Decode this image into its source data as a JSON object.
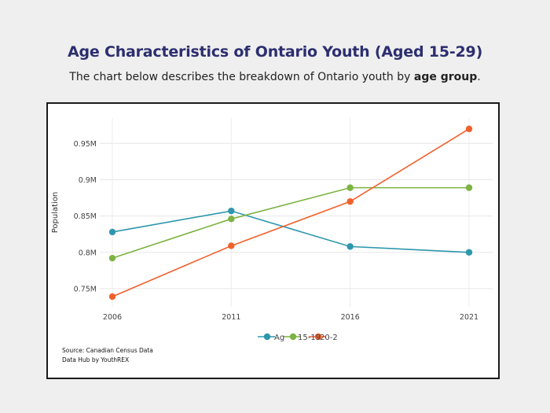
{
  "header": {
    "title": "Age Characteristics of Ontario Youth (Aged 15-29)",
    "subtitle_prefix": "The chart below describes the breakdown of Ontario youth by ",
    "subtitle_bold": "age group",
    "subtitle_suffix": "."
  },
  "footer": {
    "source": "Source: Canadian Census Data",
    "credit": "Data Hub by YouthREX"
  },
  "chart_data": {
    "type": "line",
    "title": "",
    "xlabel": "",
    "ylabel": "Population",
    "x": [
      "2006",
      "2011",
      "2016",
      "2021"
    ],
    "ylim": [
      0.725,
      0.985
    ],
    "yticks": [
      0.75,
      0.8,
      0.85,
      0.9,
      0.95
    ],
    "ytick_labels": [
      "0.75M",
      "0.8M",
      "0.85M",
      "0.9M",
      "0.95M"
    ],
    "grid": true,
    "legend_position": "bottom",
    "series": [
      {
        "name": "Ag",
        "color": "#2e97ad",
        "values": [
          0.828,
          0.857,
          0.808,
          0.8
        ]
      },
      {
        "name": "15-19",
        "color": "#7db343",
        "values": [
          0.792,
          0.846,
          0.889,
          0.889
        ]
      },
      {
        "name": "20-2",
        "color": "#f0612c",
        "values": [
          0.739,
          0.809,
          0.87,
          0.97
        ]
      }
    ],
    "legend_labels": [
      "Ag",
      "15-19",
      "20-2"
    ]
  }
}
